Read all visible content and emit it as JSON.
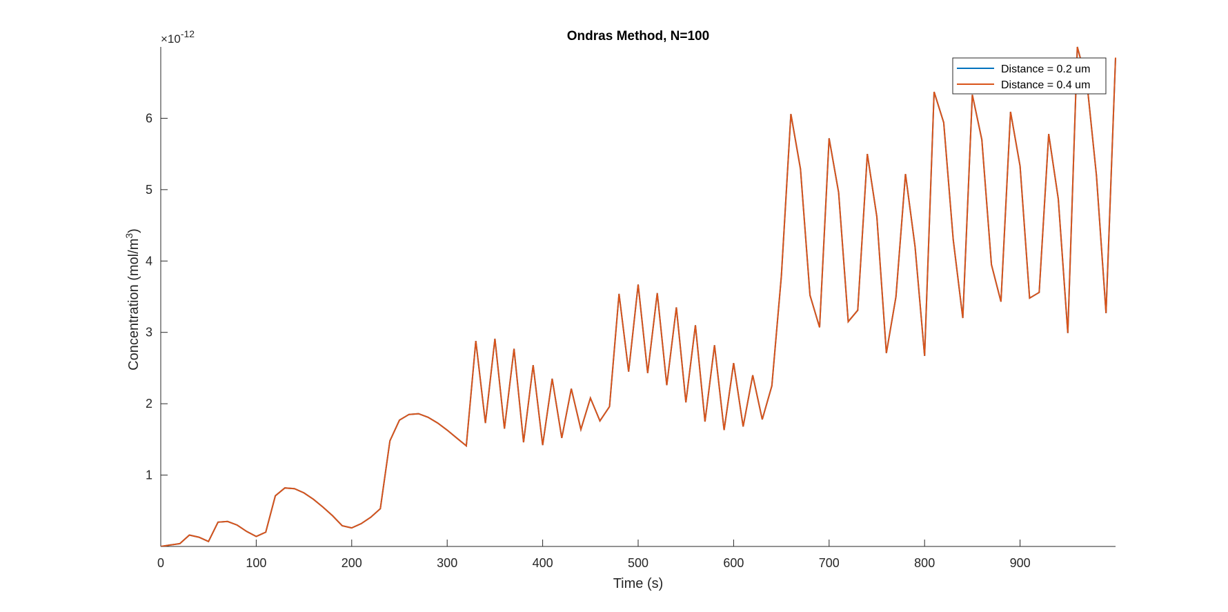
{
  "chart_data": {
    "type": "line",
    "title": "Ondras Method, N=100",
    "x_label": "Time (s)",
    "y_label_parts": [
      "Concentration (mol/m",
      "3",
      ")"
    ],
    "y_exponent_parts": [
      "×10",
      "-12"
    ],
    "x": [
      0,
      10,
      20,
      30,
      40,
      50,
      60,
      70,
      80,
      90,
      100,
      110,
      120,
      130,
      140,
      150,
      160,
      170,
      180,
      190,
      200,
      210,
      220,
      230,
      240,
      250,
      260,
      270,
      280,
      290,
      300,
      310,
      320,
      330,
      340,
      350,
      360,
      370,
      380,
      390,
      400,
      410,
      420,
      430,
      440,
      450,
      460,
      470,
      480,
      490,
      500,
      510,
      520,
      530,
      540,
      550,
      560,
      570,
      580,
      590,
      600,
      610,
      620,
      630,
      640,
      650,
      660,
      670,
      680,
      690,
      700,
      710,
      720,
      730,
      740,
      750,
      760,
      770,
      780,
      790,
      800,
      810,
      820,
      830,
      840,
      850,
      860,
      870,
      880,
      890,
      900,
      910,
      920,
      930,
      940,
      950,
      960,
      970,
      980,
      990,
      1000
    ],
    "series": [
      {
        "name": "Distance = 0.2 um",
        "color": "#0072bd",
        "values": [
          0,
          0.02,
          0.04,
          0.16,
          0.13,
          0.07,
          0.34,
          0.35,
          0.3,
          0.21,
          0.14,
          0.2,
          0.71,
          0.82,
          0.81,
          0.75,
          0.66,
          0.55,
          0.43,
          0.29,
          0.26,
          0.32,
          0.41,
          0.53,
          1.48,
          1.77,
          1.85,
          1.86,
          1.81,
          1.73,
          1.63,
          1.52,
          1.41,
          2.88,
          1.73,
          2.91,
          1.65,
          2.77,
          1.46,
          2.54,
          1.42,
          2.35,
          1.52,
          2.21,
          1.64,
          2.08,
          1.76,
          1.96,
          3.54,
          2.45,
          3.67,
          2.43,
          3.55,
          2.26,
          3.35,
          2.02,
          3.1,
          1.75,
          2.82,
          1.63,
          2.57,
          1.68,
          2.4,
          1.78,
          2.25,
          3.79,
          6.06,
          5.29,
          3.52,
          3.07,
          5.72,
          4.96,
          3.15,
          3.31,
          5.5,
          4.62,
          2.71,
          3.5,
          5.22,
          4.2,
          2.67,
          6.37,
          5.94,
          4.3,
          3.2,
          6.33,
          5.7,
          3.95,
          3.43,
          6.09,
          5.33,
          3.48,
          3.56,
          5.78,
          4.87,
          2.99,
          7.0,
          6.5,
          5.2,
          3.27,
          6.85
        ]
      },
      {
        "name": "Distance = 0.4 um",
        "color": "#d95319",
        "values": [
          0,
          0.02,
          0.04,
          0.16,
          0.13,
          0.07,
          0.34,
          0.35,
          0.3,
          0.21,
          0.14,
          0.2,
          0.71,
          0.82,
          0.81,
          0.75,
          0.66,
          0.55,
          0.43,
          0.29,
          0.26,
          0.32,
          0.41,
          0.53,
          1.48,
          1.77,
          1.85,
          1.86,
          1.81,
          1.73,
          1.63,
          1.52,
          1.41,
          2.88,
          1.73,
          2.91,
          1.65,
          2.77,
          1.46,
          2.54,
          1.42,
          2.35,
          1.52,
          2.21,
          1.64,
          2.08,
          1.76,
          1.96,
          3.54,
          2.45,
          3.67,
          2.43,
          3.55,
          2.26,
          3.35,
          2.02,
          3.1,
          1.75,
          2.82,
          1.63,
          2.57,
          1.68,
          2.4,
          1.78,
          2.25,
          3.79,
          6.06,
          5.29,
          3.52,
          3.07,
          5.72,
          4.96,
          3.15,
          3.31,
          5.5,
          4.62,
          2.71,
          3.5,
          5.22,
          4.2,
          2.67,
          6.37,
          5.94,
          4.3,
          3.2,
          6.33,
          5.7,
          3.95,
          3.43,
          6.09,
          5.33,
          3.48,
          3.56,
          5.78,
          4.87,
          2.99,
          7.0,
          6.5,
          5.2,
          3.27,
          6.85
        ]
      }
    ],
    "xlim": [
      0,
      1000
    ],
    "xticks": [
      0,
      100,
      200,
      300,
      400,
      500,
      600,
      700,
      800,
      900
    ],
    "ylim": [
      0,
      7
    ],
    "yticks": [
      1,
      2,
      3,
      4,
      5,
      6
    ],
    "legend": "top-right"
  }
}
